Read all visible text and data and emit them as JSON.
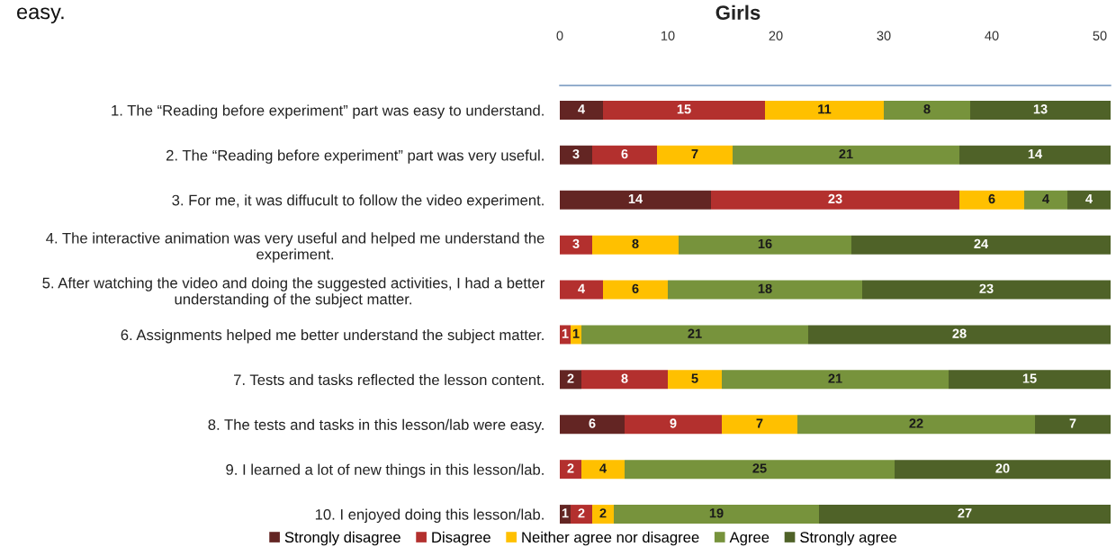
{
  "chart_data": {
    "type": "bar",
    "orientation": "horizontal",
    "stacked": true,
    "title": "Girls",
    "categories": [
      "1. The “Reading before experiment” part was easy to understand.",
      "2. The “Reading before experiment” part was very useful.",
      "3. For me, it was diffucult to follow the video experiment.",
      "4. The interactive animation was very useful and helped me understand the\nexperiment.",
      "5. After watching the video and doing the suggested activities, I had a better\nunderstanding of the subject matter.",
      "6. Assignments helped me better understand the subject matter.",
      "7. Tests and tasks reflected the lesson content.",
      "8. The tests and tasks in this lesson/lab were easy.",
      "9. I learned a lot of new things in this lesson/lab.",
      "10. I enjoyed doing this lesson/lab."
    ],
    "series": [
      {
        "name": "Strongly disagree",
        "color": "#632523",
        "values": [
          4,
          3,
          14,
          0,
          0,
          0,
          2,
          6,
          0,
          1
        ],
        "value_labels": [
          "4",
          "3",
          "14",
          null,
          null,
          null,
          "2",
          "6",
          null,
          "1"
        ]
      },
      {
        "name": "Disagree",
        "color": "#b3302e",
        "values": [
          15,
          6,
          23,
          3,
          4,
          1,
          8,
          9,
          2,
          2
        ],
        "value_labels": [
          "15",
          "6",
          "23",
          "3",
          "4",
          "1",
          "8",
          "9",
          "2",
          "2"
        ]
      },
      {
        "name": "Neither agree nor disagree",
        "color": "#ffc000",
        "values": [
          11,
          7,
          6,
          8,
          6,
          1,
          5,
          7,
          4,
          2
        ],
        "value_labels": [
          "11",
          "7",
          "6",
          "8",
          "6",
          "1",
          "5",
          "7",
          "4",
          "2"
        ]
      },
      {
        "name": "Agree",
        "color": "#77933c",
        "values": [
          8,
          21,
          4,
          16,
          18,
          21,
          21,
          22,
          25,
          19
        ],
        "value_labels": [
          "8",
          "21",
          "4",
          "16",
          "18",
          "21",
          "21",
          "22",
          "25",
          "19"
        ]
      },
      {
        "name": "Strongly agree",
        "color": "#4f6228",
        "values": [
          13,
          14,
          4,
          24,
          23,
          28,
          15,
          7,
          20,
          27
        ],
        "value_labels": [
          "13",
          "14",
          "4",
          "24",
          "23",
          "28",
          "15",
          "7",
          "20",
          "27"
        ]
      }
    ],
    "xlim": [
      0,
      51
    ],
    "xticks": [
      0,
      10,
      20,
      30,
      40,
      50
    ],
    "legend": "bottom",
    "grid": false,
    "annotations": [
      "easy."
    ]
  }
}
